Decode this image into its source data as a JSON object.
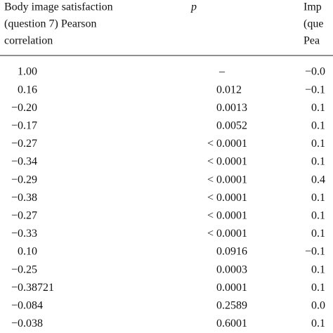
{
  "table": {
    "header": [
      [
        "Body image satisfaction",
        "(question 7) Pearson",
        "correlation"
      ],
      [
        "p"
      ],
      [
        "Imp",
        "(que",
        "Pea"
      ]
    ],
    "rows": [
      [
        "1.00",
        "–",
        "−0.0"
      ],
      [
        "0.16",
        "0.012",
        "−0.1"
      ],
      [
        "−0.20",
        "0.0013",
        "0.1"
      ],
      [
        "−0.17",
        "0.0052",
        "0.1"
      ],
      [
        "−0.27",
        "< 0.0001",
        "0.1"
      ],
      [
        "−0.34",
        "< 0.0001",
        "0.1"
      ],
      [
        "−0.29",
        "< 0.0001",
        "0.4"
      ],
      [
        "−0.38",
        "< 0.0001",
        "0.1"
      ],
      [
        "−0.27",
        "< 0.0001",
        "0.1"
      ],
      [
        "−0.33",
        "< 0.0001",
        "0.1"
      ],
      [
        "0.10",
        "0.0916",
        "−0.1"
      ],
      [
        "−0.25",
        "0.0003",
        "0.1"
      ],
      [
        "−0.38721",
        "0.0001",
        "0.1"
      ],
      [
        "−0.084",
        "0.2589",
        "0.0"
      ],
      [
        "−0.038",
        "0.6001",
        "0.1"
      ]
    ]
  }
}
